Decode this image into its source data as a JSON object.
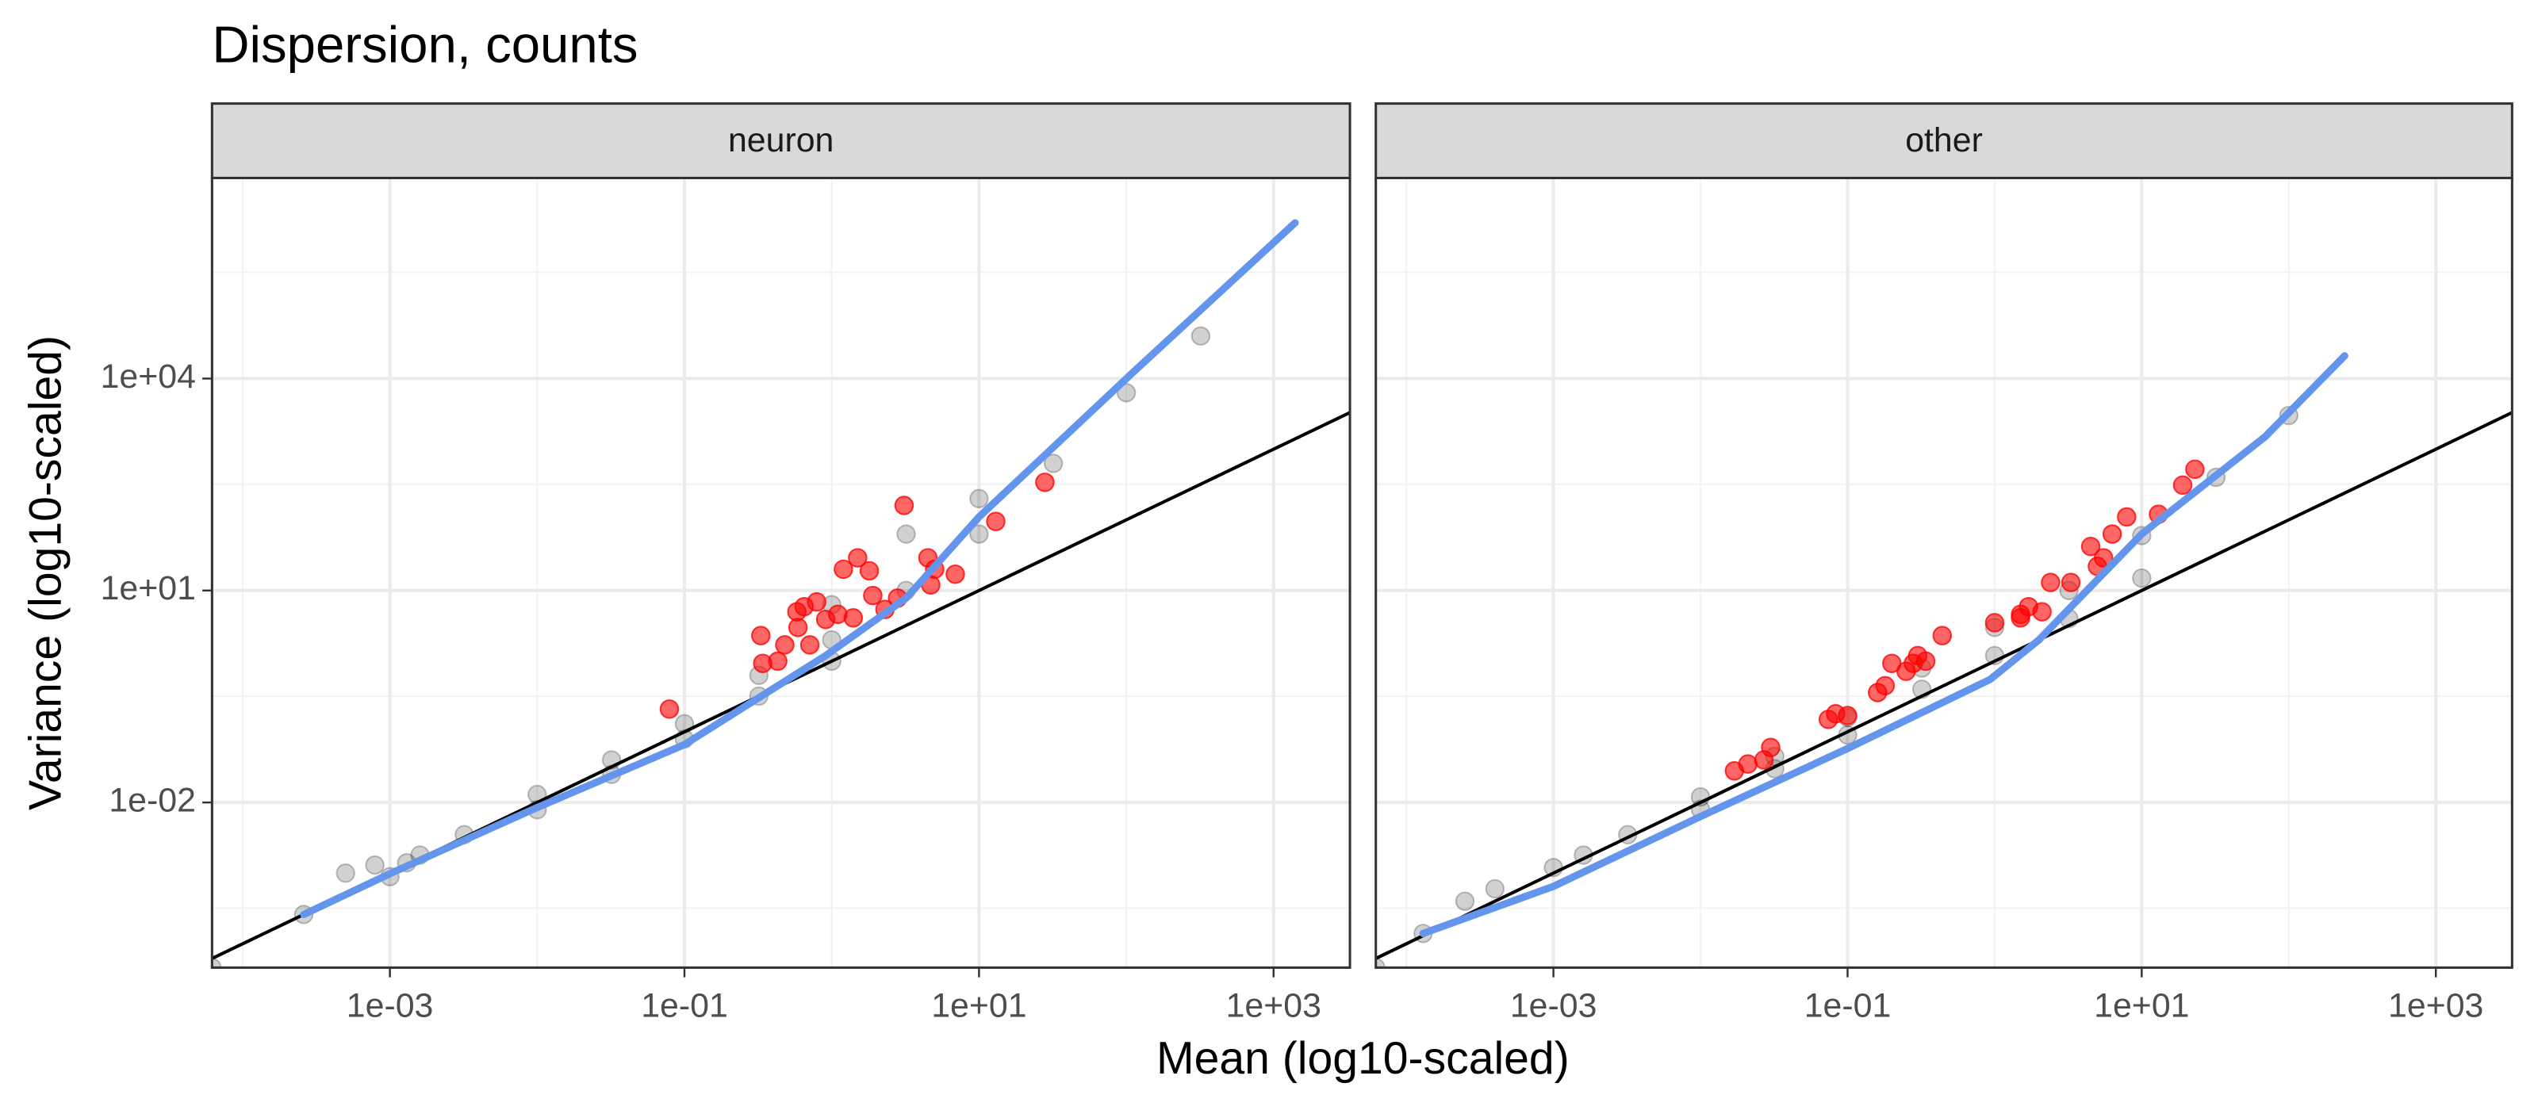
{
  "title": "Dispersion,  counts",
  "x_label": "Mean (log10-scaled)",
  "y_label": "Variance (log10-scaled)",
  "chart_data": [
    {
      "type": "scatter",
      "facet": "neuron",
      "log_x": true,
      "log_y": true,
      "grid": true,
      "xlim": [
        6.2e-05,
        3300
      ],
      "ylim": [
        4.6e-05,
        6900000
      ],
      "xticks": [
        {
          "value": 0.001,
          "label": "1e-03"
        },
        {
          "value": 0.1,
          "label": "1e-01"
        },
        {
          "value": 10,
          "label": "1e+01"
        },
        {
          "value": 1000,
          "label": "1e+03"
        }
      ],
      "yticks": [
        {
          "value": 0.01,
          "label": "1e-02"
        },
        {
          "value": 10,
          "label": "1e+01"
        },
        {
          "value": 10000,
          "label": "1e+04"
        }
      ],
      "xminor": [
        0.0001,
        0.01,
        1,
        100
      ],
      "yminor": [
        0.00032,
        0.32,
        320,
        320000
      ],
      "reference_line": {
        "slope": 1,
        "intercept": 0,
        "color": "#000000"
      },
      "series": [
        {
          "color": "#000000",
          "opacity": 0.18,
          "x": [
            6.2e-05,
            0.00026,
            0.0005,
            0.00079,
            0.001,
            0.0013,
            0.0016,
            0.0032,
            0.01,
            0.01,
            0.032,
            0.032,
            0.1,
            0.1,
            0.32,
            0.32,
            1,
            1,
            1,
            3.2,
            3.2,
            10,
            10,
            32,
            100,
            320
          ],
          "values": [
            4.6e-05,
            0.00026,
            0.001,
            0.0013,
            0.00089,
            0.0014,
            0.0018,
            0.0035,
            0.013,
            0.0079,
            0.04,
            0.025,
            0.13,
            0.079,
            0.63,
            0.32,
            2,
            1,
            6.3,
            10,
            63,
            63,
            200,
            630,
            6300,
            40000
          ]
        },
        {
          "color": "#ff0000",
          "opacity": 0.6,
          "x": [
            0.079,
            0.34,
            0.33,
            0.58,
            0.65,
            0.59,
            0.79,
            0.91,
            1.2,
            1.5,
            1.8,
            1.9,
            2.3,
            2.8,
            3.1,
            4.5,
            4.7,
            5.0,
            6.9,
            13,
            28,
            0.43,
            0.48,
            0.71,
            1.1,
            1.4
          ],
          "values": [
            0.21,
            0.93,
            2.3,
            5.0,
            5.9,
            3.0,
            6.9,
            3.9,
            20,
            29,
            19,
            8.5,
            5.4,
            7.8,
            160,
            29,
            12,
            20,
            17,
            95,
            340,
            1.0,
            1.7,
            1.7,
            4.6,
            4.1
          ]
        },
        {
          "type": "line",
          "color": "#6495ed",
          "x": [
            0.00026,
            0.001,
            0.0095,
            0.1,
            0.91,
            3.2,
            10,
            110,
            1400
          ],
          "values": [
            0.00026,
            0.00098,
            0.0081,
            0.066,
            1.2,
            7.8,
            110,
            12000,
            1600000
          ]
        }
      ]
    },
    {
      "type": "scatter",
      "facet": "other",
      "log_x": true,
      "log_y": true,
      "grid": true,
      "xlim": [
        6.2e-05,
        3300
      ],
      "ylim": [
        4.6e-05,
        6900000
      ],
      "xticks": [
        {
          "value": 0.001,
          "label": "1e-03"
        },
        {
          "value": 0.1,
          "label": "1e-01"
        },
        {
          "value": 10,
          "label": "1e+01"
        },
        {
          "value": 1000,
          "label": "1e+03"
        }
      ],
      "yticks": [
        {
          "value": 0.01,
          "label": "1e-02"
        },
        {
          "value": 10,
          "label": "1e+01"
        },
        {
          "value": 10000,
          "label": "1e+04"
        }
      ],
      "xminor": [
        0.0001,
        0.01,
        1,
        100
      ],
      "yminor": [
        0.00032,
        0.32,
        320,
        320000
      ],
      "reference_line": {
        "slope": 1,
        "intercept": 0,
        "color": "#000000"
      },
      "series": [
        {
          "color": "#000000",
          "opacity": 0.18,
          "x": [
            6.2e-05,
            0.00013,
            0.00025,
            0.0004,
            0.001,
            0.0016,
            0.0032,
            0.01,
            0.01,
            0.032,
            0.032,
            0.1,
            0.1,
            0.32,
            0.32,
            1,
            1,
            3.2,
            3.2,
            10,
            10,
            32,
            100
          ],
          "values": [
            4.6e-05,
            0.00014,
            0.0004,
            0.0006,
            0.0012,
            0.0018,
            0.0035,
            0.012,
            0.008,
            0.045,
            0.03,
            0.16,
            0.09,
            0.8,
            0.4,
            3,
            1.2,
            10,
            4,
            60,
            15,
            400,
            3000
          ]
        },
        {
          "color": "#ff0000",
          "opacity": 0.6,
          "x": [
            0.017,
            0.021,
            0.027,
            0.03,
            0.074,
            0.083,
            0.16,
            0.18,
            0.2,
            0.25,
            0.3,
            0.34,
            0.44,
            1.0,
            1.5,
            1.7,
            2.1,
            2.4,
            3.3,
            4.5,
            5.5,
            6.3,
            7.9,
            13,
            19,
            23,
            0.1,
            0.28,
            1.5,
            5.0
          ],
          "values": [
            0.028,
            0.035,
            0.04,
            0.06,
            0.15,
            0.18,
            0.36,
            0.45,
            0.93,
            0.72,
            1.2,
            1.0,
            2.3,
            3.5,
            4.6,
            5.9,
            5.0,
            13,
            13,
            42,
            29,
            63,
            110,
            120,
            310,
            520,
            0.17,
            0.93,
            4.1,
            22
          ]
        },
        {
          "type": "line",
          "color": "#6495ed",
          "x": [
            0.00013,
            0.001,
            0.0098,
            0.1,
            0.93,
            2,
            10,
            69,
            240
          ],
          "values": [
            0.00014,
            0.00065,
            0.0062,
            0.058,
            0.55,
            2,
            63,
            1500,
            21000
          ]
        }
      ]
    }
  ]
}
